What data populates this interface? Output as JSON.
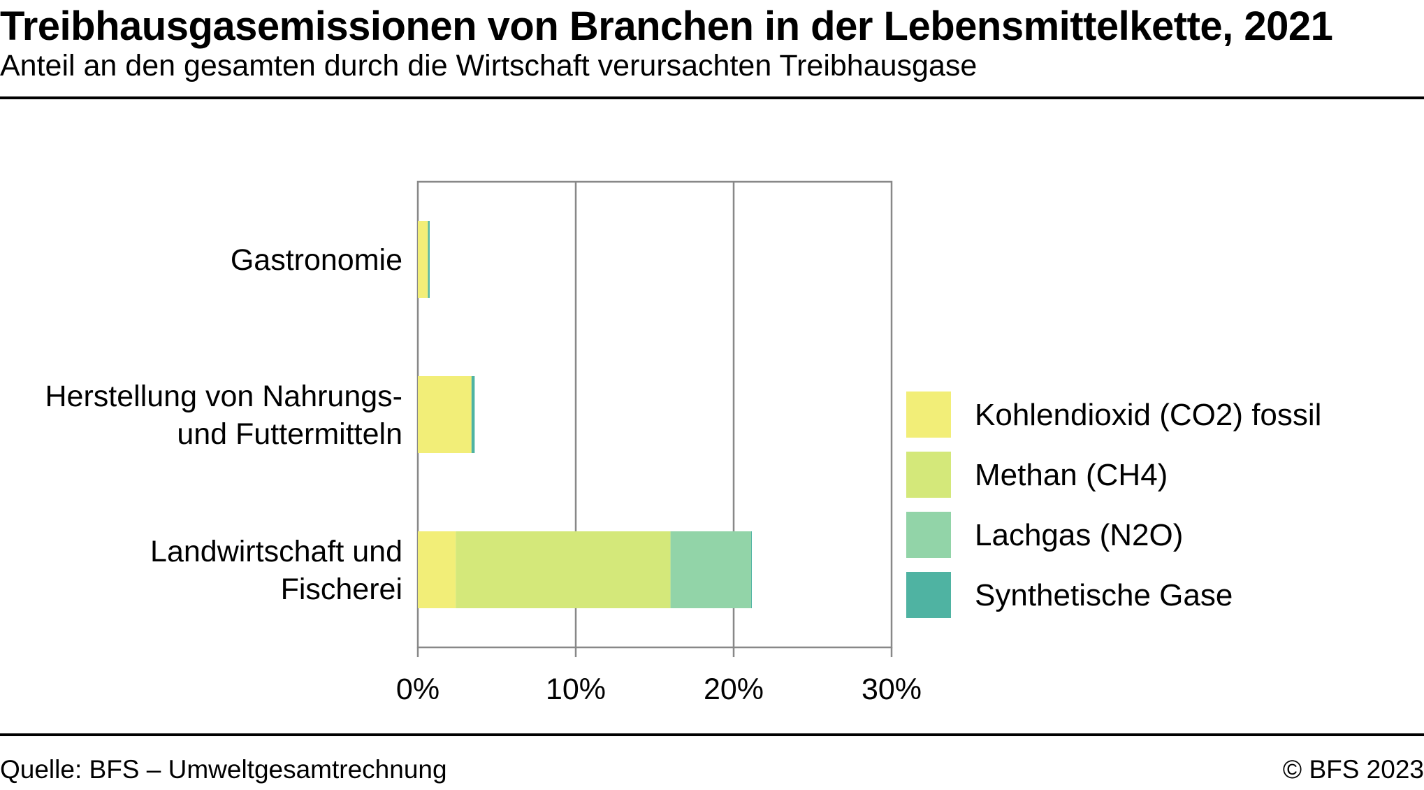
{
  "header": {
    "title": "Treibhausgasemissionen von Branchen in der Lebensmittelkette, 2021",
    "subtitle": "Anteil an den gesamten durch die Wirtschaft verursachten Treibhausgase"
  },
  "footer": {
    "source": "Quelle: BFS – Umweltgesamtrechnung",
    "copyright": "© BFS 2023"
  },
  "chart_data": {
    "type": "bar",
    "orientation": "horizontal",
    "stacked": true,
    "categories": [
      [
        "Gastronomie"
      ],
      [
        "Herstellung von Nahrungs-",
        "und Futtermitteln"
      ],
      [
        "Landwirtschaft und",
        "Fischerei"
      ]
    ],
    "series": [
      {
        "name": "Kohlendioxid (CO2) fossil",
        "color": "#f2ee78",
        "values": [
          0.6,
          3.4,
          2.4
        ]
      },
      {
        "name": "Methan (CH4)",
        "color": "#d4e87a",
        "values": [
          0.05,
          0.0,
          13.6
        ]
      },
      {
        "name": "Lachgas (N2O)",
        "color": "#92d4a8",
        "values": [
          0.0,
          0.0,
          5.1
        ]
      },
      {
        "name": "Synthetische Gase",
        "color": "#4fb3a2",
        "values": [
          0.1,
          0.2,
          0.05
        ]
      }
    ],
    "xlim": [
      0,
      30
    ],
    "xticks": [
      0,
      10,
      20,
      30
    ],
    "xtick_labels": [
      "0%",
      "10%",
      "20%",
      "30%"
    ],
    "grid": true,
    "legend_position": "right"
  }
}
